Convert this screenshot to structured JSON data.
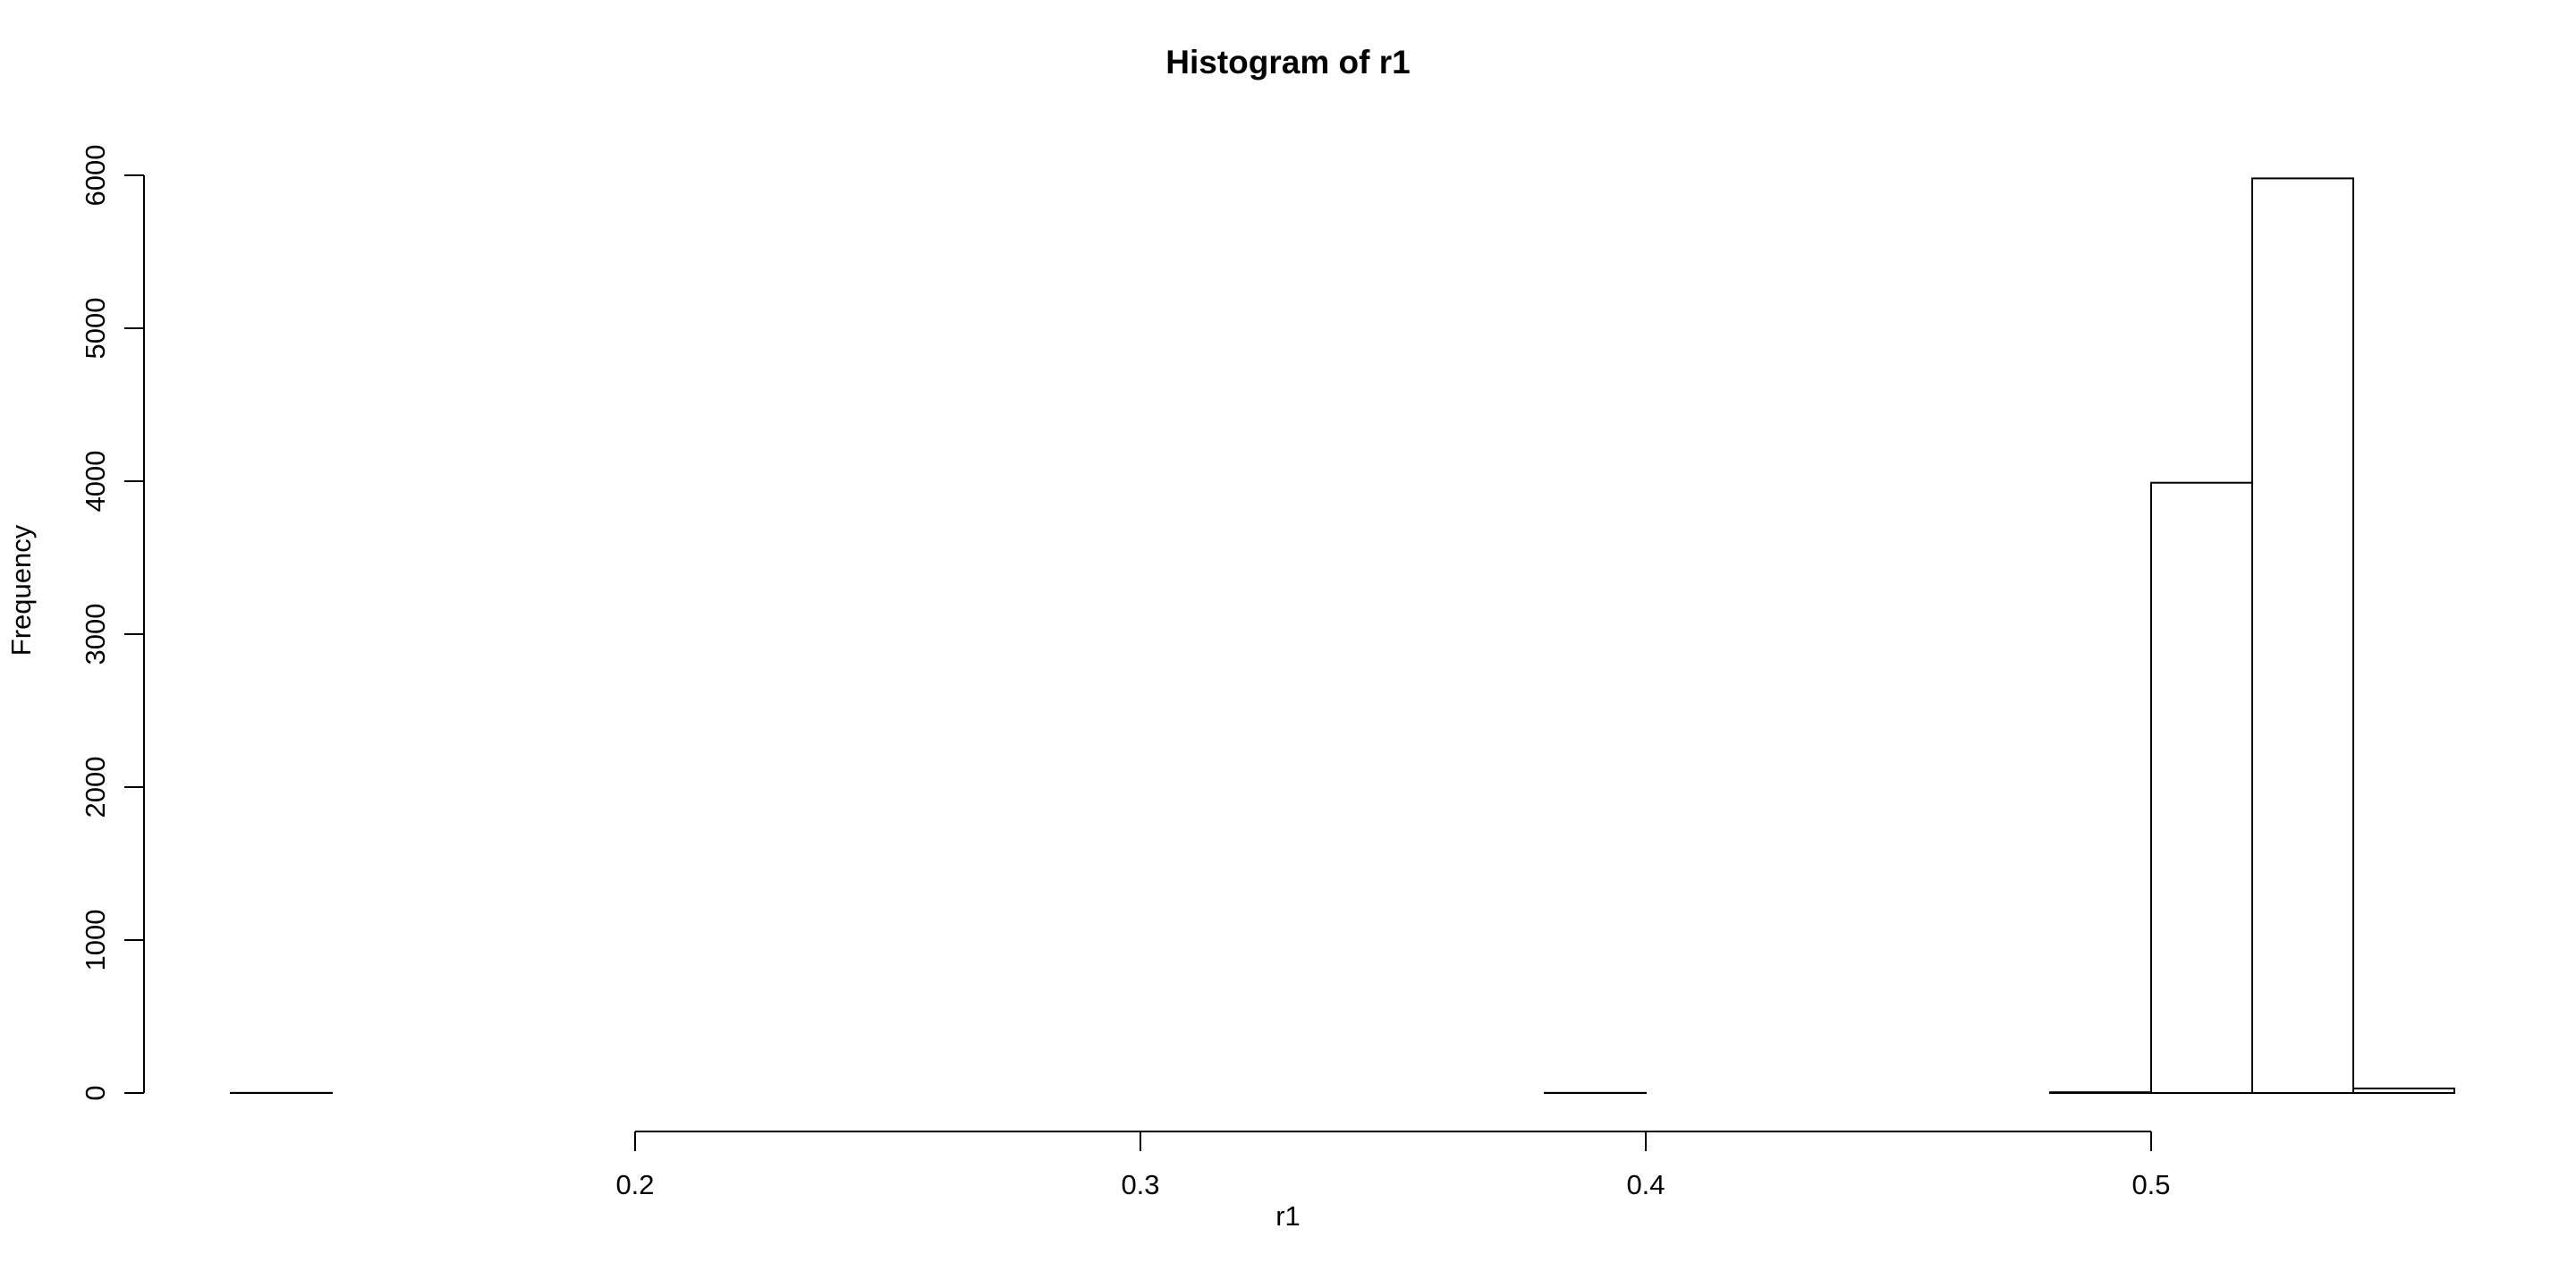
{
  "chart_data": {
    "type": "bar",
    "title": "Histogram of r1",
    "xlabel": "r1",
    "ylabel": "Frequency",
    "bins": [
      {
        "x0": 0.12,
        "x1": 0.14,
        "count": 1
      },
      {
        "x0": 0.14,
        "x1": 0.16,
        "count": 0
      },
      {
        "x0": 0.16,
        "x1": 0.18,
        "count": 0
      },
      {
        "x0": 0.18,
        "x1": 0.2,
        "count": 0
      },
      {
        "x0": 0.2,
        "x1": 0.22,
        "count": 0
      },
      {
        "x0": 0.22,
        "x1": 0.24,
        "count": 0
      },
      {
        "x0": 0.24,
        "x1": 0.26,
        "count": 0
      },
      {
        "x0": 0.26,
        "x1": 0.28,
        "count": 0
      },
      {
        "x0": 0.28,
        "x1": 0.3,
        "count": 0
      },
      {
        "x0": 0.3,
        "x1": 0.32,
        "count": 0
      },
      {
        "x0": 0.32,
        "x1": 0.34,
        "count": 0
      },
      {
        "x0": 0.34,
        "x1": 0.36,
        "count": 0
      },
      {
        "x0": 0.36,
        "x1": 0.38,
        "count": 0
      },
      {
        "x0": 0.38,
        "x1": 0.4,
        "count": 1
      },
      {
        "x0": 0.4,
        "x1": 0.42,
        "count": 0
      },
      {
        "x0": 0.42,
        "x1": 0.44,
        "count": 0
      },
      {
        "x0": 0.44,
        "x1": 0.46,
        "count": 0
      },
      {
        "x0": 0.46,
        "x1": 0.48,
        "count": 0
      },
      {
        "x0": 0.48,
        "x1": 0.5,
        "count": 5
      },
      {
        "x0": 0.5,
        "x1": 0.52,
        "count": 3990
      },
      {
        "x0": 0.52,
        "x1": 0.54,
        "count": 5980
      },
      {
        "x0": 0.54,
        "x1": 0.56,
        "count": 30
      }
    ],
    "xlim": [
      0.12,
      0.56
    ],
    "ylim": [
      0,
      6000
    ],
    "x_ticks": [
      0.2,
      0.3,
      0.4,
      0.5
    ],
    "y_ticks": [
      0,
      1000,
      2000,
      3000,
      4000,
      5000,
      6000
    ],
    "grid": false
  }
}
